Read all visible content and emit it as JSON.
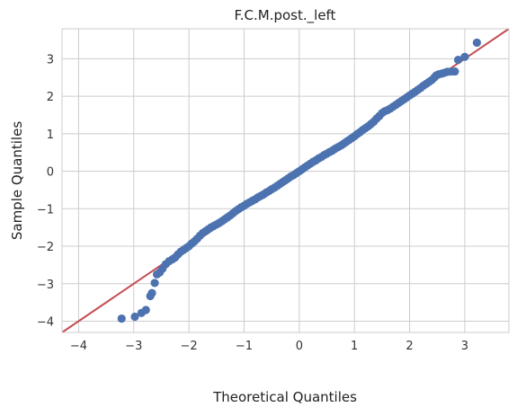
{
  "chart_data": {
    "type": "scatter",
    "title": "F.C.M.post._left",
    "xlabel": "Theoretical Quantiles",
    "ylabel": "Sample Quantiles",
    "xlim": [
      -4.3,
      3.8
    ],
    "ylim": [
      -4.3,
      3.8
    ],
    "xticks": [
      -4,
      -3,
      -2,
      -1,
      0,
      1,
      2,
      3
    ],
    "yticks": [
      -4,
      -3,
      -2,
      -1,
      0,
      1,
      2,
      3
    ],
    "xtick_labels": [
      "−4",
      "−3",
      "−2",
      "−1",
      "0",
      "1",
      "2",
      "3"
    ],
    "ytick_labels": [
      "−4",
      "−3",
      "−2",
      "−1",
      "0",
      "1",
      "2",
      "3"
    ],
    "grid": true,
    "colors": {
      "points": "#4c72b0",
      "line": "#c44e52",
      "grid": "#cccccc"
    },
    "reference_line": {
      "slope": 1,
      "intercept": 0
    },
    "points": [
      [
        -3.22,
        -3.93
      ],
      [
        -2.98,
        -3.88
      ],
      [
        -2.86,
        -3.78
      ],
      [
        -2.78,
        -3.7
      ],
      [
        -2.7,
        -3.33
      ],
      [
        -2.67,
        -3.25
      ],
      [
        -2.62,
        -2.98
      ],
      [
        -2.58,
        -2.75
      ],
      [
        -2.53,
        -2.7
      ],
      [
        -2.48,
        -2.6
      ],
      [
        -2.42,
        -2.48
      ],
      [
        -2.36,
        -2.4
      ],
      [
        -2.3,
        -2.35
      ],
      [
        -2.25,
        -2.3
      ],
      [
        -2.2,
        -2.22
      ],
      [
        -2.15,
        -2.15
      ],
      [
        -2.1,
        -2.1
      ],
      [
        -2.05,
        -2.05
      ],
      [
        -2.0,
        -2.0
      ],
      [
        -1.95,
        -1.93
      ],
      [
        -1.9,
        -1.87
      ],
      [
        -1.85,
        -1.8
      ],
      [
        -1.8,
        -1.72
      ],
      [
        -1.75,
        -1.65
      ],
      [
        -1.7,
        -1.6
      ],
      [
        -1.65,
        -1.55
      ],
      [
        -1.6,
        -1.5
      ],
      [
        -1.55,
        -1.46
      ],
      [
        -1.5,
        -1.42
      ],
      [
        -1.45,
        -1.38
      ],
      [
        -1.4,
        -1.33
      ],
      [
        -1.35,
        -1.28
      ],
      [
        -1.3,
        -1.23
      ],
      [
        -1.25,
        -1.18
      ],
      [
        -1.2,
        -1.12
      ],
      [
        -1.15,
        -1.06
      ],
      [
        -1.1,
        -1.01
      ],
      [
        -1.05,
        -0.96
      ],
      [
        -1.0,
        -0.92
      ],
      [
        -0.95,
        -0.87
      ],
      [
        -0.9,
        -0.83
      ],
      [
        -0.85,
        -0.79
      ],
      [
        -0.8,
        -0.75
      ],
      [
        -0.75,
        -0.7
      ],
      [
        -0.7,
        -0.66
      ],
      [
        -0.65,
        -0.62
      ],
      [
        -0.6,
        -0.57
      ],
      [
        -0.55,
        -0.53
      ],
      [
        -0.5,
        -0.48
      ],
      [
        -0.45,
        -0.44
      ],
      [
        -0.4,
        -0.39
      ],
      [
        -0.35,
        -0.34
      ],
      [
        -0.3,
        -0.29
      ],
      [
        -0.25,
        -0.24
      ],
      [
        -0.2,
        -0.19
      ],
      [
        -0.15,
        -0.14
      ],
      [
        -0.1,
        -0.1
      ],
      [
        -0.05,
        -0.05
      ],
      [
        0.0,
        0.0
      ],
      [
        0.05,
        0.05
      ],
      [
        0.1,
        0.1
      ],
      [
        0.15,
        0.15
      ],
      [
        0.2,
        0.2
      ],
      [
        0.25,
        0.25
      ],
      [
        0.3,
        0.29
      ],
      [
        0.35,
        0.34
      ],
      [
        0.4,
        0.38
      ],
      [
        0.45,
        0.43
      ],
      [
        0.5,
        0.47
      ],
      [
        0.55,
        0.51
      ],
      [
        0.6,
        0.55
      ],
      [
        0.65,
        0.6
      ],
      [
        0.7,
        0.64
      ],
      [
        0.75,
        0.68
      ],
      [
        0.8,
        0.73
      ],
      [
        0.85,
        0.78
      ],
      [
        0.9,
        0.83
      ],
      [
        0.95,
        0.88
      ],
      [
        1.0,
        0.93
      ],
      [
        1.05,
        0.99
      ],
      [
        1.1,
        1.04
      ],
      [
        1.15,
        1.1
      ],
      [
        1.2,
        1.15
      ],
      [
        1.25,
        1.2
      ],
      [
        1.3,
        1.26
      ],
      [
        1.35,
        1.32
      ],
      [
        1.4,
        1.4
      ],
      [
        1.45,
        1.47
      ],
      [
        1.5,
        1.55
      ],
      [
        1.55,
        1.6
      ],
      [
        1.6,
        1.63
      ],
      [
        1.65,
        1.67
      ],
      [
        1.7,
        1.72
      ],
      [
        1.75,
        1.77
      ],
      [
        1.8,
        1.82
      ],
      [
        1.85,
        1.87
      ],
      [
        1.9,
        1.92
      ],
      [
        1.95,
        1.97
      ],
      [
        2.0,
        2.02
      ],
      [
        2.05,
        2.07
      ],
      [
        2.1,
        2.12
      ],
      [
        2.15,
        2.17
      ],
      [
        2.2,
        2.22
      ],
      [
        2.25,
        2.28
      ],
      [
        2.3,
        2.33
      ],
      [
        2.35,
        2.38
      ],
      [
        2.4,
        2.43
      ],
      [
        2.45,
        2.5
      ],
      [
        2.48,
        2.55
      ],
      [
        2.52,
        2.58
      ],
      [
        2.57,
        2.6
      ],
      [
        2.62,
        2.62
      ],
      [
        2.68,
        2.65
      ],
      [
        2.75,
        2.66
      ],
      [
        2.82,
        2.66
      ],
      [
        2.88,
        2.97
      ],
      [
        3.0,
        3.05
      ],
      [
        3.22,
        3.43
      ]
    ]
  }
}
